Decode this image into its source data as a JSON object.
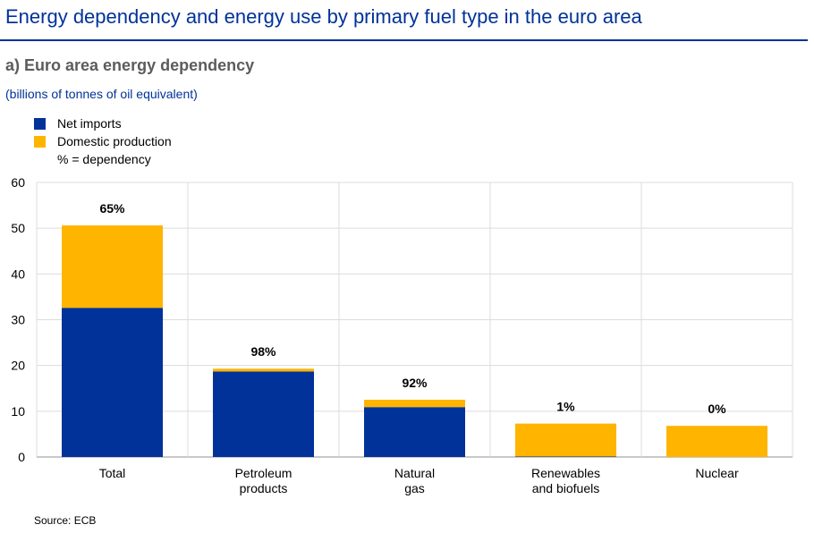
{
  "header": {
    "title": "Energy dependency and energy use by primary fuel type in the euro area"
  },
  "chart_data": {
    "type": "bar",
    "stacked": true,
    "title": "a) Euro area energy dependency",
    "ylabel": "(billions of tonnes of oil equivalent)",
    "xlabel": "",
    "ylim": [
      0,
      60
    ],
    "yticks": [
      0,
      10,
      20,
      30,
      40,
      50,
      60
    ],
    "grid": true,
    "legend_position": "top-left",
    "categories": [
      [
        "Total"
      ],
      [
        "Petroleum",
        "products"
      ],
      [
        "Natural",
        "gas"
      ],
      [
        "Renewables",
        "and biofuels"
      ],
      [
        "Nuclear"
      ]
    ],
    "series": [
      {
        "name": "Net imports",
        "color": "#003299",
        "values": [
          32.6,
          18.7,
          10.9,
          0.1,
          0
        ]
      },
      {
        "name": "Domestic production",
        "color": "#ffb400",
        "values": [
          18.0,
          0.6,
          1.6,
          7.2,
          6.8
        ]
      }
    ],
    "legend_note": "% = dependency",
    "data_labels": [
      "65%",
      "98%",
      "92%",
      "1%",
      "0%"
    ]
  },
  "source": "Source: ECB"
}
